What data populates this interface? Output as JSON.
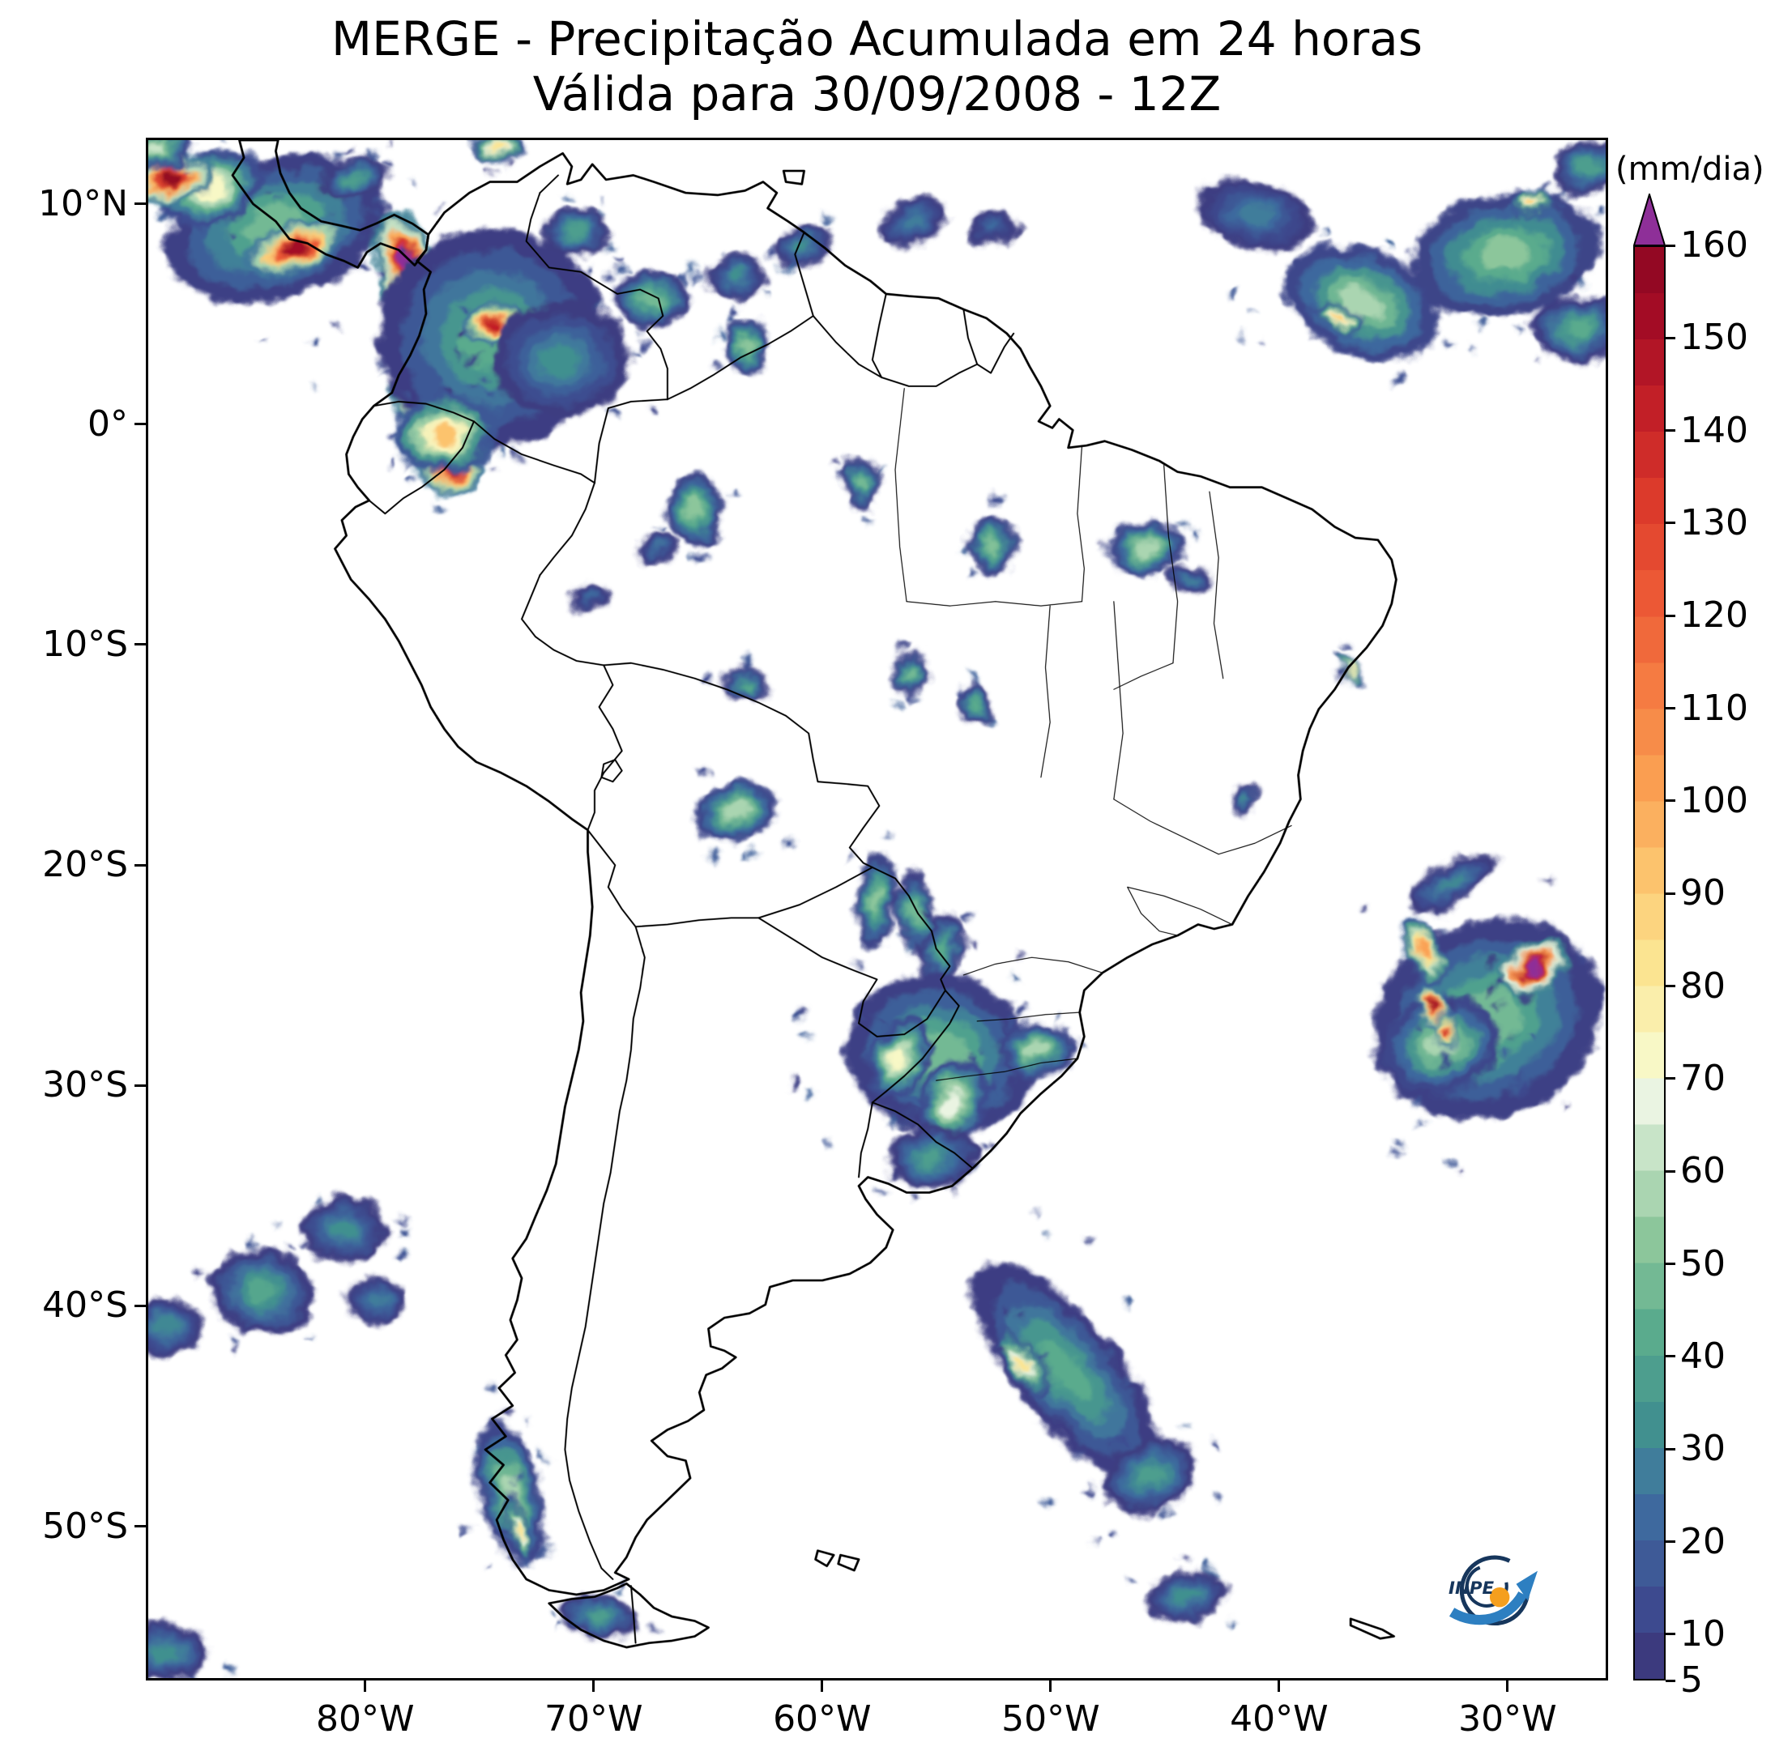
{
  "header": {
    "title_line1": "MERGE - Precipitação Acumulada em 24 horas",
    "title_line2": "Válida para 30/09/2008 - 12Z"
  },
  "axes": {
    "x_ticks": [
      {
        "value": -80,
        "label": "80°W"
      },
      {
        "value": -70,
        "label": "70°W"
      },
      {
        "value": -60,
        "label": "60°W"
      },
      {
        "value": -50,
        "label": "50°W"
      },
      {
        "value": -40,
        "label": "40°W"
      },
      {
        "value": -30,
        "label": "30°W"
      }
    ],
    "y_ticks": [
      {
        "value": 10,
        "label": "10°N"
      },
      {
        "value": 0,
        "label": "0°"
      },
      {
        "value": -10,
        "label": "10°S"
      },
      {
        "value": -20,
        "label": "20°S"
      },
      {
        "value": -30,
        "label": "30°S"
      },
      {
        "value": -40,
        "label": "40°S"
      },
      {
        "value": -50,
        "label": "50°S"
      }
    ]
  },
  "colorbar": {
    "unit_label": "(mm/dia)",
    "over_color": "#8e2f98",
    "ticks": [
      {
        "value": 5,
        "label": "5"
      },
      {
        "value": 10,
        "label": "10"
      },
      {
        "value": 20,
        "label": "20"
      },
      {
        "value": 30,
        "label": "30"
      },
      {
        "value": 40,
        "label": "40"
      },
      {
        "value": 50,
        "label": "50"
      },
      {
        "value": 60,
        "label": "60"
      },
      {
        "value": 70,
        "label": "70"
      },
      {
        "value": 80,
        "label": "80"
      },
      {
        "value": 90,
        "label": "90"
      },
      {
        "value": 100,
        "label": "100"
      },
      {
        "value": 110,
        "label": "110"
      },
      {
        "value": 120,
        "label": "120"
      },
      {
        "value": 130,
        "label": "130"
      },
      {
        "value": 140,
        "label": "140"
      },
      {
        "value": 150,
        "label": "150"
      },
      {
        "value": 160,
        "label": "160"
      }
    ],
    "levels": [
      {
        "value": 5,
        "color": "#3c3a7e"
      },
      {
        "value": 10,
        "color": "#3d4a8f"
      },
      {
        "value": 15,
        "color": "#3e5a97"
      },
      {
        "value": 20,
        "color": "#3e699e"
      },
      {
        "value": 25,
        "color": "#407d9b"
      },
      {
        "value": 30,
        "color": "#41908f"
      },
      {
        "value": 35,
        "color": "#4d9e8e"
      },
      {
        "value": 40,
        "color": "#5aab8d"
      },
      {
        "value": 45,
        "color": "#73b994"
      },
      {
        "value": 50,
        "color": "#8cc69b"
      },
      {
        "value": 55,
        "color": "#aad5b1"
      },
      {
        "value": 60,
        "color": "#c8e4c8"
      },
      {
        "value": 65,
        "color": "#eaf4e2"
      },
      {
        "value": 70,
        "color": "#f8f8c6"
      },
      {
        "value": 75,
        "color": "#faeeab"
      },
      {
        "value": 80,
        "color": "#fbe491"
      },
      {
        "value": 85,
        "color": "#fcd47f"
      },
      {
        "value": 90,
        "color": "#fcc36d"
      },
      {
        "value": 95,
        "color": "#fbb05f"
      },
      {
        "value": 100,
        "color": "#fa9e51"
      },
      {
        "value": 105,
        "color": "#f78c49"
      },
      {
        "value": 110,
        "color": "#f57b42"
      },
      {
        "value": 115,
        "color": "#f0693b"
      },
      {
        "value": 120,
        "color": "#ec5835"
      },
      {
        "value": 125,
        "color": "#e44930"
      },
      {
        "value": 130,
        "color": "#dc3a2b"
      },
      {
        "value": 135,
        "color": "#cf2c29"
      },
      {
        "value": 140,
        "color": "#c21f27"
      },
      {
        "value": 145,
        "color": "#b21526"
      },
      {
        "value": 150,
        "color": "#a30c25"
      },
      {
        "value": 155,
        "color": "#930823"
      }
    ]
  },
  "logo": {
    "text": "INPE"
  },
  "chart_data": {
    "type": "heatmap",
    "variable": "24h accumulated precipitation (MERGE)",
    "units": "mm/dia",
    "title": "MERGE - Precipitação Acumulada em 24 horas",
    "subtitle": "Válida para 30/09/2008 - 12Z",
    "lon_range": [
      -89.6,
      -25.6
    ],
    "lat_range": [
      -57,
      13
    ],
    "lon_ticks": [
      -80,
      -70,
      -60,
      -50,
      -40,
      -30
    ],
    "lat_ticks": [
      10,
      0,
      -10,
      -20,
      -30,
      -40,
      -50
    ],
    "colorbar_min": 5,
    "colorbar_max": 160,
    "colorbar_tick_values": [
      5,
      10,
      20,
      30,
      40,
      50,
      60,
      70,
      80,
      90,
      100,
      110,
      120,
      130,
      140,
      150,
      160
    ],
    "precip_systems": [
      {
        "region": "pacific-off-panama",
        "lon": -84.0,
        "lat": 9.0,
        "rx_deg": 5.0,
        "ry_deg": 3.2,
        "rot_deg": -18,
        "peak_mm": 45
      },
      {
        "region": "pacific-off-panama-core",
        "lon": -83.2,
        "lat": 8.1,
        "rx_deg": 2.4,
        "ry_deg": 1.1,
        "rot_deg": -22,
        "peak_mm": 150
      },
      {
        "region": "costa-rica-offshore",
        "lon": -86.8,
        "lat": 10.8,
        "rx_deg": 2.4,
        "ry_deg": 1.6,
        "rot_deg": -25,
        "peak_mm": 70
      },
      {
        "region": "nicaragua-corner",
        "lon": -88.6,
        "lat": 11.2,
        "rx_deg": 1.8,
        "ry_deg": 1.1,
        "rot_deg": -15,
        "peak_mm": 160
      },
      {
        "region": "top-left-edge",
        "lon": -89.2,
        "lat": 12.6,
        "rx_deg": 1.6,
        "ry_deg": 1.0,
        "rot_deg": 0,
        "peak_mm": 60
      },
      {
        "region": "panama-caribbean",
        "lon": -80.6,
        "lat": 11.2,
        "rx_deg": 1.5,
        "ry_deg": 0.9,
        "rot_deg": -20,
        "peak_mm": 35
      },
      {
        "region": "colombia-pacific-north-core",
        "lon": -78.4,
        "lat": 7.6,
        "rx_deg": 1.3,
        "ry_deg": 2.2,
        "rot_deg": -12,
        "peak_mm": 165
      },
      {
        "region": "colombia-pacific-south-core",
        "lon": -77.9,
        "lat": 1.9,
        "rx_deg": 1.1,
        "ry_deg": 2.6,
        "rot_deg": -8,
        "peak_mm": 160
      },
      {
        "region": "colombia-interior",
        "lon": -74.5,
        "lat": 4.0,
        "rx_deg": 5.0,
        "ry_deg": 5.0,
        "rot_deg": 10,
        "peak_mm": 40
      },
      {
        "region": "colombia-andes-core",
        "lon": -74.4,
        "lat": 4.6,
        "rx_deg": 1.3,
        "ry_deg": 1.0,
        "rot_deg": 0,
        "peak_mm": 140
      },
      {
        "region": "colombia-south-core",
        "lon": -76.4,
        "lat": -2.0,
        "rx_deg": 1.5,
        "ry_deg": 1.1,
        "rot_deg": 15,
        "peak_mm": 150
      },
      {
        "region": "ecuador-amazon",
        "lon": -76.6,
        "lat": -0.4,
        "rx_deg": 2.2,
        "ry_deg": 1.8,
        "rot_deg": 0,
        "peak_mm": 90
      },
      {
        "region": "colombia-llanos",
        "lon": -71.5,
        "lat": 3.0,
        "rx_deg": 3.0,
        "ry_deg": 2.6,
        "rot_deg": 0,
        "peak_mm": 30
      },
      {
        "region": "guajira-top-edge",
        "lon": -74.3,
        "lat": 12.7,
        "rx_deg": 1.2,
        "ry_deg": 0.7,
        "rot_deg": 0,
        "peak_mm": 80
      },
      {
        "region": "venezuela-west",
        "lon": -70.8,
        "lat": 8.8,
        "rx_deg": 1.4,
        "ry_deg": 1.1,
        "rot_deg": 0,
        "peak_mm": 35
      },
      {
        "region": "venezuela-central",
        "lon": -67.5,
        "lat": 5.8,
        "rx_deg": 1.7,
        "ry_deg": 1.3,
        "rot_deg": 0,
        "peak_mm": 45
      },
      {
        "region": "venezuela-east",
        "lon": -63.8,
        "lat": 6.8,
        "rx_deg": 1.4,
        "ry_deg": 1.0,
        "rot_deg": 0,
        "peak_mm": 30
      },
      {
        "region": "guyana-offshore",
        "lon": -60.8,
        "lat": 8.2,
        "rx_deg": 1.3,
        "ry_deg": 0.9,
        "rot_deg": -20,
        "peak_mm": 30
      },
      {
        "region": "suriname-offshore",
        "lon": -56.0,
        "lat": 9.3,
        "rx_deg": 1.6,
        "ry_deg": 1.0,
        "rot_deg": -20,
        "peak_mm": 25
      },
      {
        "region": "guiana-coast",
        "lon": -52.5,
        "lat": 9.0,
        "rx_deg": 1.1,
        "ry_deg": 0.8,
        "rot_deg": 0,
        "peak_mm": 20
      },
      {
        "region": "venezuela-brazil-border",
        "lon": -63.3,
        "lat": 3.6,
        "rx_deg": 1.0,
        "ry_deg": 1.2,
        "rot_deg": 0,
        "peak_mm": 50
      },
      {
        "region": "itcz-west",
        "lon": -41.0,
        "lat": 9.6,
        "rx_deg": 2.6,
        "ry_deg": 1.5,
        "rot_deg": 15,
        "peak_mm": 25
      },
      {
        "region": "itcz-central",
        "lon": -36.3,
        "lat": 5.6,
        "rx_deg": 3.6,
        "ry_deg": 2.4,
        "rot_deg": 25,
        "peak_mm": 55
      },
      {
        "region": "itcz-central-core",
        "lon": -37.3,
        "lat": 4.9,
        "rx_deg": 1.0,
        "ry_deg": 0.6,
        "rot_deg": 25,
        "peak_mm": 85
      },
      {
        "region": "itcz-east",
        "lon": -30.0,
        "lat": 7.8,
        "rx_deg": 4.2,
        "ry_deg": 2.8,
        "rot_deg": -12,
        "peak_mm": 50
      },
      {
        "region": "itcz-east-core",
        "lon": -28.8,
        "lat": 10.2,
        "rx_deg": 0.9,
        "ry_deg": 0.6,
        "rot_deg": 0,
        "peak_mm": 85
      },
      {
        "region": "itcz-ne-corner",
        "lon": -26.3,
        "lat": 11.8,
        "rx_deg": 1.8,
        "ry_deg": 1.2,
        "rot_deg": -20,
        "peak_mm": 35
      },
      {
        "region": "itcz-southeast",
        "lon": -26.8,
        "lat": 4.4,
        "rx_deg": 2.0,
        "ry_deg": 1.5,
        "rot_deg": 0,
        "peak_mm": 40
      },
      {
        "region": "west-amazon",
        "lon": -65.6,
        "lat": -3.8,
        "rx_deg": 1.3,
        "ry_deg": 1.7,
        "rot_deg": 0,
        "peak_mm": 50
      },
      {
        "region": "amazon-speck-1",
        "lon": -67.3,
        "lat": -5.6,
        "rx_deg": 0.9,
        "ry_deg": 0.7,
        "rot_deg": 0,
        "peak_mm": 22
      },
      {
        "region": "amazon-speck-2",
        "lon": -70.2,
        "lat": -7.8,
        "rx_deg": 0.9,
        "ry_deg": 0.6,
        "rot_deg": 0,
        "peak_mm": 20
      },
      {
        "region": "central-amazon",
        "lon": -58.3,
        "lat": -2.6,
        "rx_deg": 0.9,
        "ry_deg": 1.2,
        "rot_deg": 0,
        "peak_mm": 45
      },
      {
        "region": "para-blob",
        "lon": -52.6,
        "lat": -5.4,
        "rx_deg": 1.0,
        "ry_deg": 1.4,
        "rot_deg": 0,
        "peak_mm": 48
      },
      {
        "region": "maranhao-blob",
        "lon": -45.8,
        "lat": -5.6,
        "rx_deg": 1.7,
        "ry_deg": 1.2,
        "rot_deg": 0,
        "peak_mm": 55
      },
      {
        "region": "piaui-speck",
        "lon": -43.9,
        "lat": -7.0,
        "rx_deg": 0.9,
        "ry_deg": 0.7,
        "rot_deg": 0,
        "peak_mm": 25
      },
      {
        "region": "sergipe-coast-streak",
        "lon": -36.9,
        "lat": -11.1,
        "rx_deg": 0.3,
        "ry_deg": 1.0,
        "rot_deg": -38,
        "peak_mm": 75
      },
      {
        "region": "rondonia",
        "lon": -63.4,
        "lat": -11.8,
        "rx_deg": 1.0,
        "ry_deg": 0.8,
        "rot_deg": 0,
        "peak_mm": 38
      },
      {
        "region": "mato-grosso-1",
        "lon": -56.1,
        "lat": -11.3,
        "rx_deg": 0.8,
        "ry_deg": 1.0,
        "rot_deg": 0,
        "peak_mm": 45
      },
      {
        "region": "mato-grosso-2",
        "lon": -53.3,
        "lat": -12.7,
        "rx_deg": 0.8,
        "ry_deg": 0.9,
        "rot_deg": 0,
        "peak_mm": 40
      },
      {
        "region": "minas-bahia-speck",
        "lon": -41.4,
        "lat": -17.1,
        "rx_deg": 0.6,
        "ry_deg": 0.7,
        "rot_deg": 0,
        "peak_mm": 28
      },
      {
        "region": "bolivia-lowlands",
        "lon": -63.8,
        "lat": -17.6,
        "rx_deg": 1.9,
        "ry_deg": 1.3,
        "rot_deg": -12,
        "peak_mm": 55
      },
      {
        "region": "paraguay-band-west",
        "lon": -57.6,
        "lat": -21.6,
        "rx_deg": 0.9,
        "ry_deg": 2.1,
        "rot_deg": 5,
        "peak_mm": 50
      },
      {
        "region": "paraguay-band-east",
        "lon": -55.9,
        "lat": -22.2,
        "rx_deg": 0.8,
        "ry_deg": 2.0,
        "rot_deg": -5,
        "peak_mm": 45
      },
      {
        "region": "parana-band",
        "lon": -54.7,
        "lat": -23.8,
        "rx_deg": 0.9,
        "ry_deg": 1.7,
        "rot_deg": 10,
        "peak_mm": 40
      },
      {
        "region": "south-brazil-system",
        "lon": -54.8,
        "lat": -28.6,
        "rx_deg": 4.2,
        "ry_deg": 3.6,
        "rot_deg": 20,
        "peak_mm": 45
      },
      {
        "region": "rio-grande-core-1",
        "lon": -56.6,
        "lat": -28.8,
        "rx_deg": 1.3,
        "ry_deg": 2.0,
        "rot_deg": 20,
        "peak_mm": 70
      },
      {
        "region": "rio-grande-core-2",
        "lon": -54.3,
        "lat": -30.8,
        "rx_deg": 1.5,
        "ry_deg": 2.0,
        "rot_deg": 28,
        "peak_mm": 65
      },
      {
        "region": "santa-catarina",
        "lon": -50.6,
        "lat": -28.4,
        "rx_deg": 1.7,
        "ry_deg": 1.3,
        "rot_deg": 0,
        "peak_mm": 55
      },
      {
        "region": "uruguay",
        "lon": -55.2,
        "lat": -33.3,
        "rx_deg": 2.0,
        "ry_deg": 1.4,
        "rot_deg": 0,
        "peak_mm": 35
      },
      {
        "region": "atlantic-system",
        "lon": -30.8,
        "lat": -27.0,
        "rx_deg": 5.2,
        "ry_deg": 4.4,
        "rot_deg": -28,
        "peak_mm": 45
      },
      {
        "region": "atlantic-green-mass",
        "lon": -32.8,
        "lat": -28.2,
        "rx_deg": 2.6,
        "ry_deg": 2.2,
        "rot_deg": -20,
        "peak_mm": 55
      },
      {
        "region": "atlantic-extreme-core",
        "lon": -28.8,
        "lat": -24.7,
        "rx_deg": 1.7,
        "ry_deg": 1.1,
        "rot_deg": -32,
        "peak_mm": 175
      },
      {
        "region": "atlantic-yellow-arc",
        "lon": -33.6,
        "lat": -23.9,
        "rx_deg": 0.7,
        "ry_deg": 1.7,
        "rot_deg": -24,
        "peak_mm": 100
      },
      {
        "region": "atlantic-red-streak-1",
        "lon": -33.3,
        "lat": -26.4,
        "rx_deg": 0.6,
        "ry_deg": 1.1,
        "rot_deg": -18,
        "peak_mm": 150
      },
      {
        "region": "atlantic-red-streak-2",
        "lon": -32.6,
        "lat": -27.6,
        "rx_deg": 0.5,
        "ry_deg": 0.9,
        "rot_deg": -10,
        "peak_mm": 135
      },
      {
        "region": "atlantic-north-streaks",
        "lon": -32.4,
        "lat": -20.8,
        "rx_deg": 2.2,
        "ry_deg": 0.9,
        "rot_deg": -30,
        "peak_mm": 28
      },
      {
        "region": "argentine-sea-band",
        "lon": -49.3,
        "lat": -43.0,
        "rx_deg": 2.3,
        "ry_deg": 6.0,
        "rot_deg": -38,
        "peak_mm": 40
      },
      {
        "region": "argentine-sea-core",
        "lon": -51.2,
        "lat": -42.6,
        "rx_deg": 0.7,
        "ry_deg": 1.9,
        "rot_deg": -38,
        "peak_mm": 80
      },
      {
        "region": "argentine-sea-south",
        "lon": -45.6,
        "lat": -47.8,
        "rx_deg": 2.2,
        "ry_deg": 1.6,
        "rot_deg": -22,
        "peak_mm": 35
      },
      {
        "region": "south-atlantic-blob",
        "lon": -44.0,
        "lat": -53.3,
        "rx_deg": 1.8,
        "ry_deg": 1.1,
        "rot_deg": -10,
        "peak_mm": 30
      },
      {
        "region": "pacific-chile-1",
        "lon": -84.6,
        "lat": -39.4,
        "rx_deg": 2.3,
        "ry_deg": 1.9,
        "rot_deg": 10,
        "peak_mm": 38
      },
      {
        "region": "pacific-chile-2",
        "lon": -81.0,
        "lat": -36.6,
        "rx_deg": 1.8,
        "ry_deg": 1.5,
        "rot_deg": 0,
        "peak_mm": 30
      },
      {
        "region": "pacific-chile-3",
        "lon": -79.6,
        "lat": -39.8,
        "rx_deg": 1.3,
        "ry_deg": 1.0,
        "rot_deg": 0,
        "peak_mm": 25
      },
      {
        "region": "pacific-left-edge",
        "lon": -88.8,
        "lat": -41.0,
        "rx_deg": 1.6,
        "ry_deg": 1.3,
        "rot_deg": 0,
        "peak_mm": 28
      },
      {
        "region": "chile-patagonia-band",
        "lon": -73.7,
        "lat": -48.6,
        "rx_deg": 1.4,
        "ry_deg": 3.4,
        "rot_deg": -14,
        "peak_mm": 55
      },
      {
        "region": "chile-patagonia-core",
        "lon": -73.4,
        "lat": -50.2,
        "rx_deg": 0.5,
        "ry_deg": 1.7,
        "rot_deg": -14,
        "peak_mm": 80
      },
      {
        "region": "tierra-del-fuego",
        "lon": -69.8,
        "lat": -54.2,
        "rx_deg": 1.7,
        "ry_deg": 1.0,
        "rot_deg": 15,
        "peak_mm": 35
      },
      {
        "region": "bottom-left-corner",
        "lon": -88.9,
        "lat": -55.8,
        "rx_deg": 2.0,
        "ry_deg": 1.3,
        "rot_deg": 0,
        "peak_mm": 30
      }
    ]
  }
}
